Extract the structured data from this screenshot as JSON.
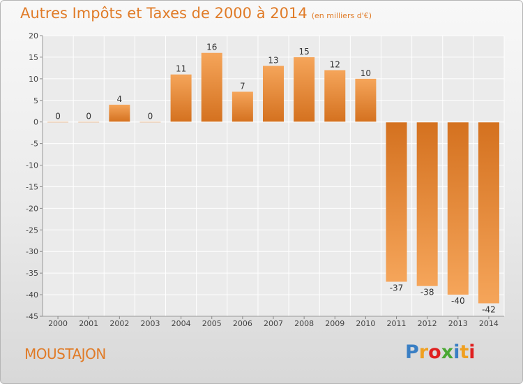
{
  "title": "Autres Impôts et Taxes de 2000 à 2014",
  "subtitle": "(en milliers d'€)",
  "commune": "MOUSTAJON",
  "logo": {
    "letters": [
      "P",
      "r",
      "o",
      "x",
      "i",
      "t",
      "i"
    ],
    "colors": [
      "#3a7fc4",
      "#f0a020",
      "#e02020",
      "#4aa833",
      "#3a7fc4",
      "#f0a020",
      "#e02020"
    ]
  },
  "colors": {
    "accent": "#e07b27",
    "bar_light": "#f5a55a",
    "bar_dark": "#d4711f"
  },
  "chart_data": {
    "type": "bar",
    "categories": [
      "2000",
      "2001",
      "2002",
      "2003",
      "2004",
      "2005",
      "2006",
      "2007",
      "2008",
      "2009",
      "2010",
      "2011",
      "2012",
      "2013",
      "2014"
    ],
    "values": [
      0,
      0,
      4,
      0,
      11,
      16,
      7,
      13,
      15,
      12,
      10,
      -37,
      -38,
      -40,
      -42
    ],
    "ylim": [
      -45,
      20
    ],
    "yticks": [
      20,
      15,
      10,
      5,
      0,
      -5,
      -10,
      -15,
      -20,
      -25,
      -30,
      -35,
      -40,
      -45
    ],
    "grid": true,
    "legend": "none"
  }
}
